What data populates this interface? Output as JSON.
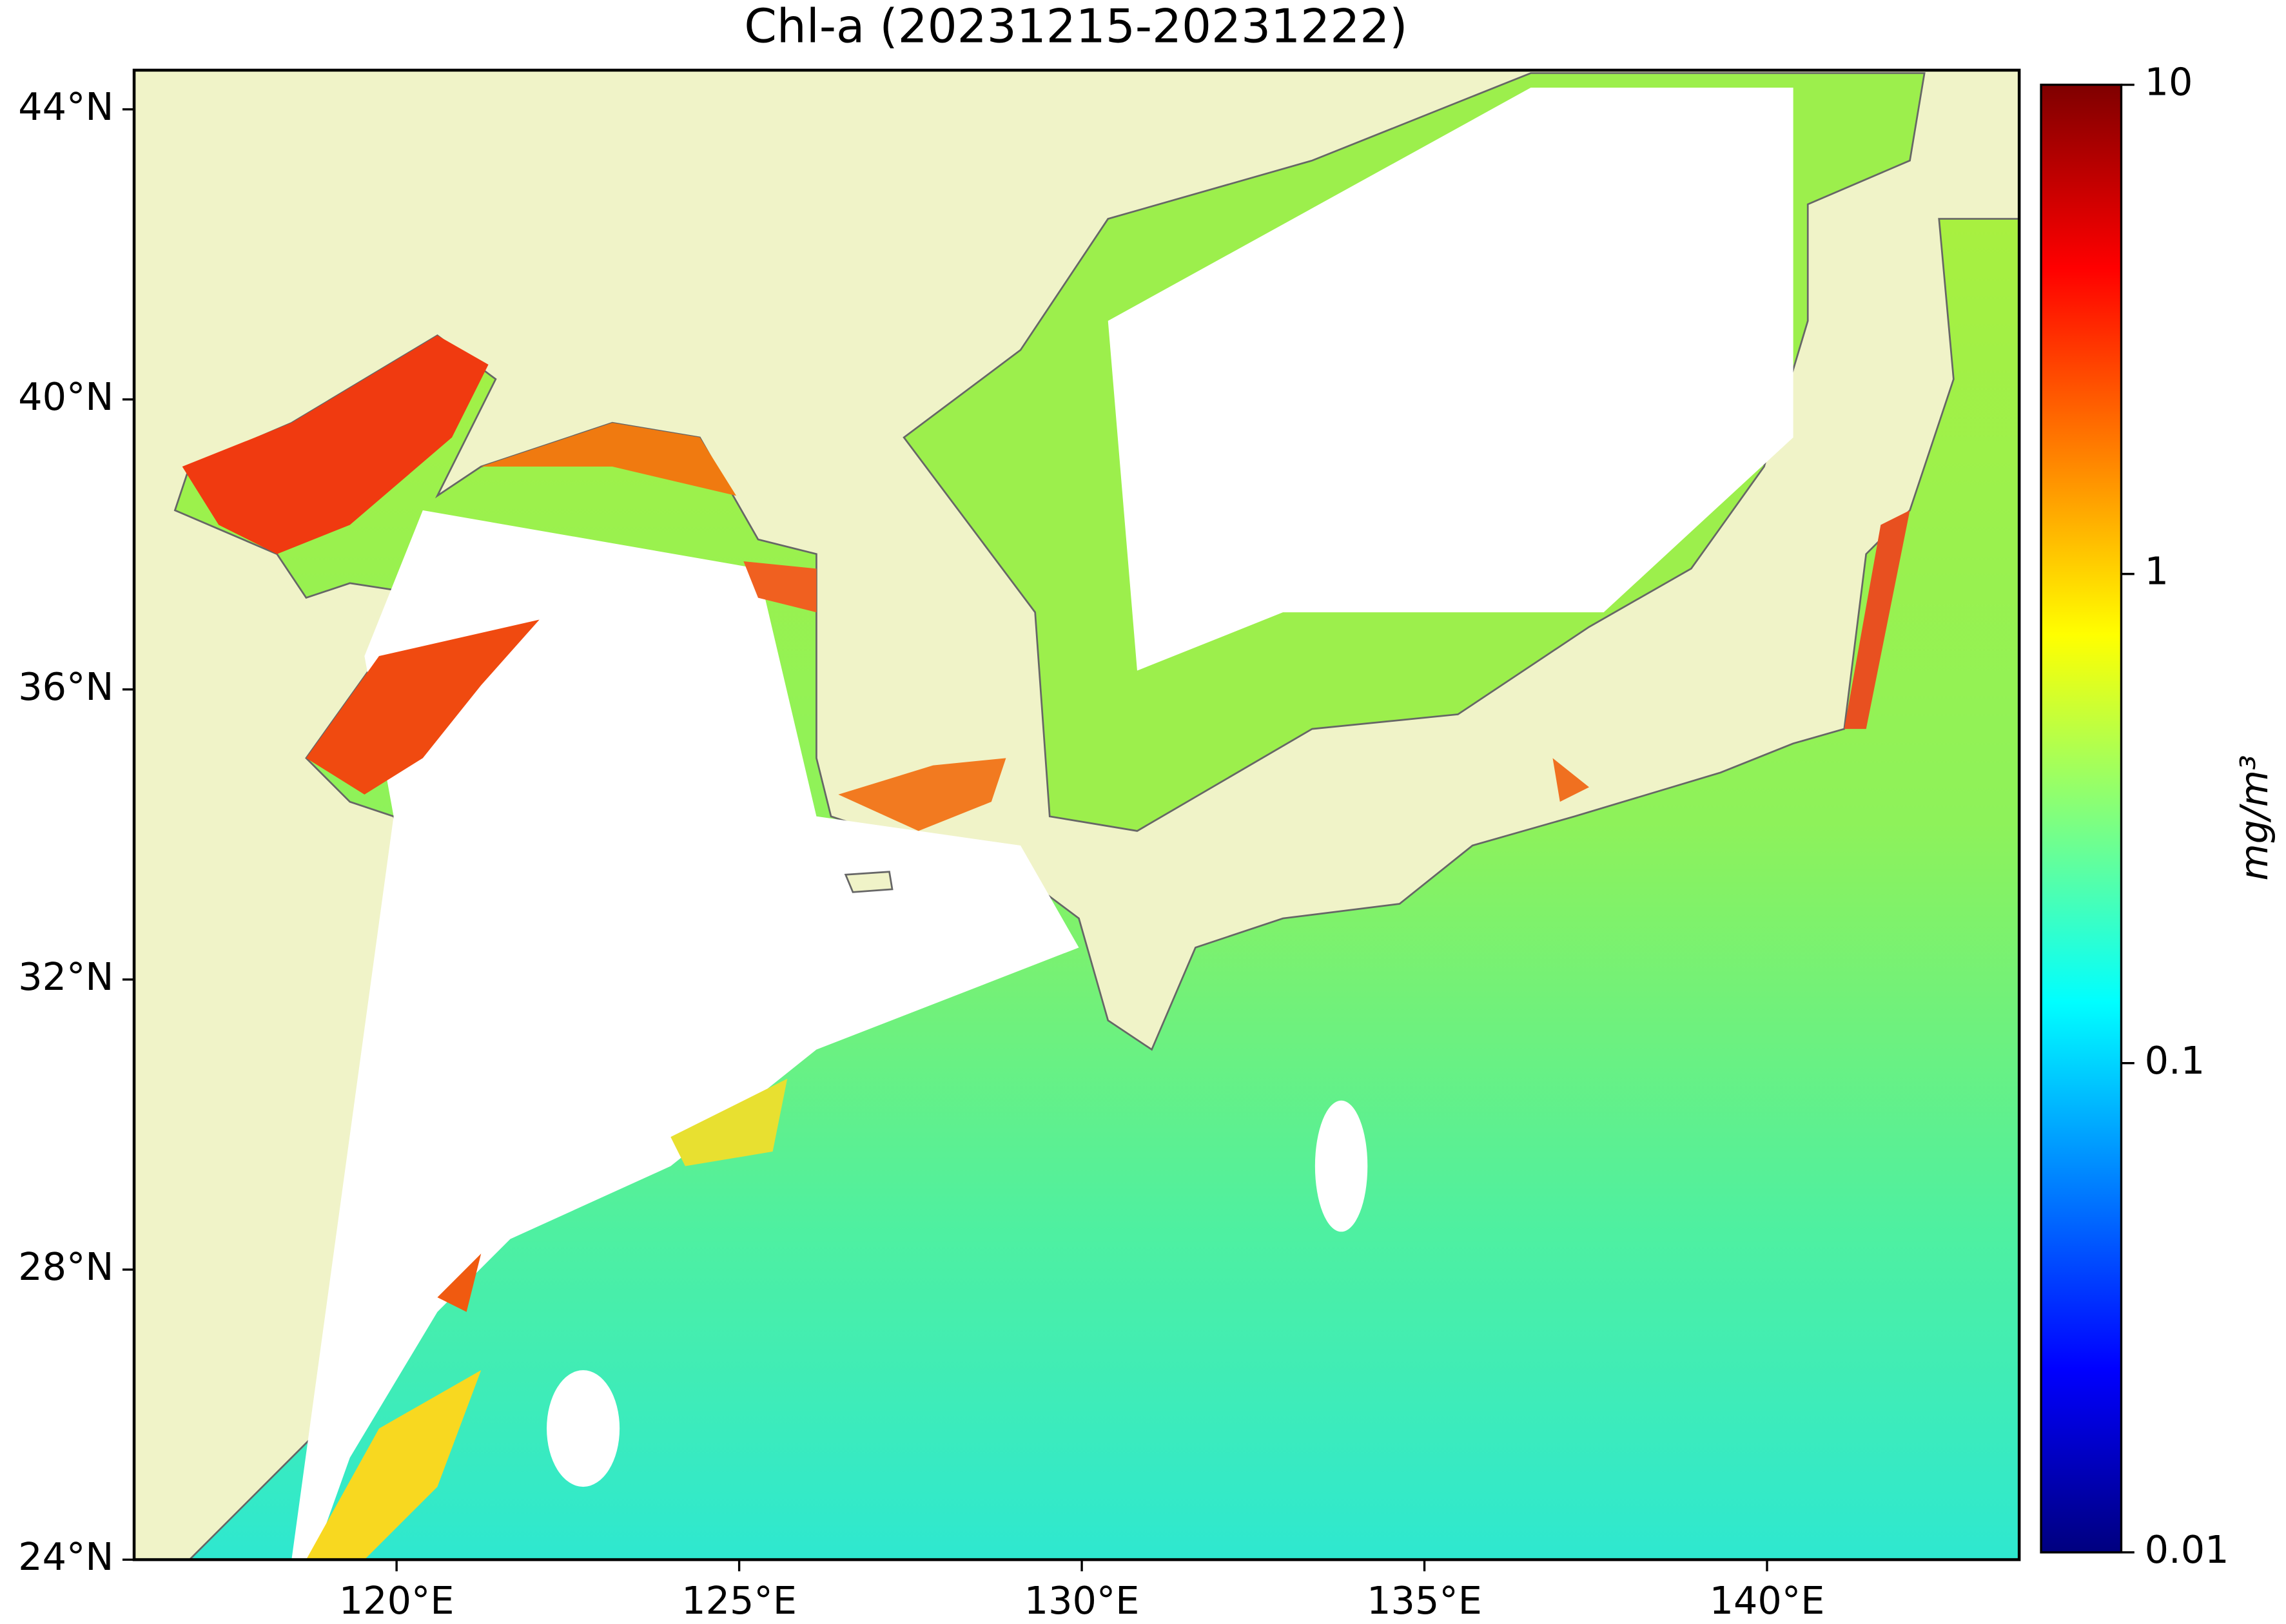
{
  "chart_data": {
    "type": "map",
    "title": "Chl-a (20231215-20231222)",
    "xlim": [
      116.17,
      143.68
    ],
    "ylim": [
      24,
      44.54
    ],
    "xticks": [
      {
        "value": 120,
        "label": "120°E"
      },
      {
        "value": 125,
        "label": "125°E"
      },
      {
        "value": 130,
        "label": "130°E"
      },
      {
        "value": 135,
        "label": "135°E"
      },
      {
        "value": 140,
        "label": "140°E"
      }
    ],
    "yticks": [
      {
        "value": 24,
        "label": "24°N"
      },
      {
        "value": 28,
        "label": "28°N"
      },
      {
        "value": 32,
        "label": "32°N"
      },
      {
        "value": 36,
        "label": "36°N"
      },
      {
        "value": 40,
        "label": "40°N"
      },
      {
        "value": 44,
        "label": "44°N"
      }
    ],
    "colorbar": {
      "label": "mg/m³",
      "scale": "log",
      "lim": [
        0.01,
        10
      ],
      "ticks": [
        0.01,
        0.1,
        1,
        10
      ],
      "colormap": "jet"
    }
  }
}
